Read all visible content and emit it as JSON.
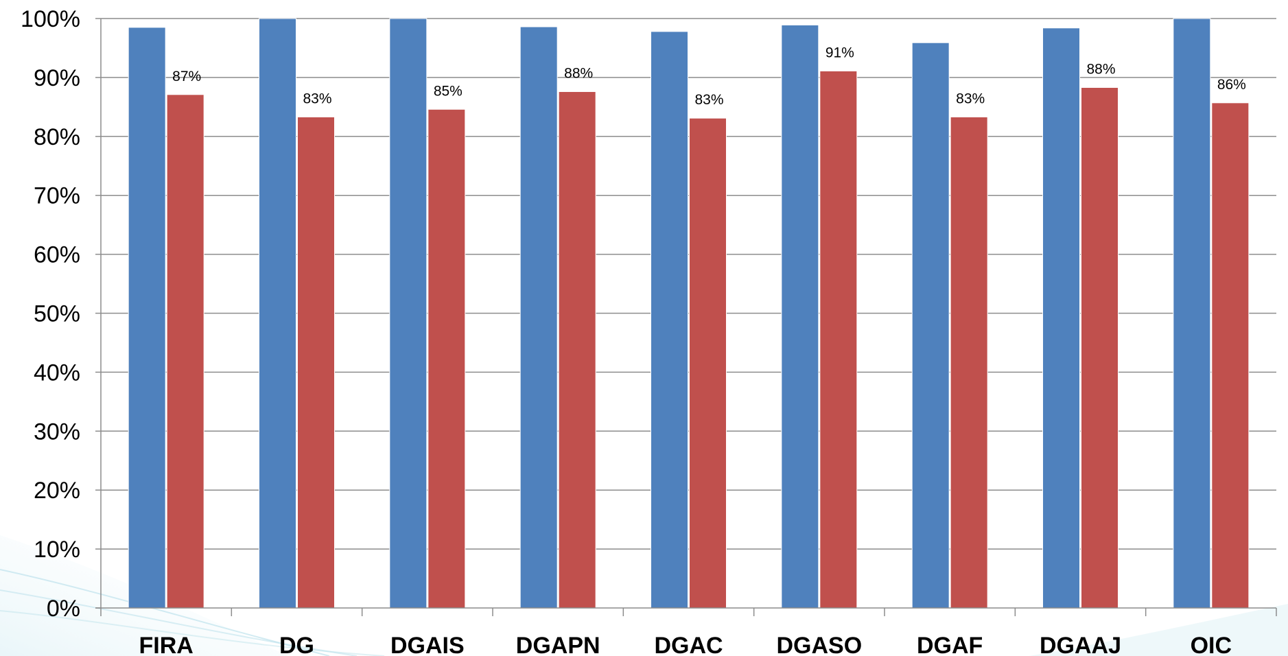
{
  "chart_data": {
    "type": "bar",
    "title": "",
    "xlabel": "",
    "ylabel": "",
    "categories": [
      "FIRA",
      "DG",
      "DGAIS",
      "DGAPN",
      "DGAC",
      "DGASO",
      "DGAF",
      "DGAAJ",
      "OIC"
    ],
    "series": [
      {
        "color": "#4F81BD",
        "values": [
          98.5,
          100,
          100,
          98.6,
          97.8,
          98.9,
          95.9,
          98.4,
          100
        ],
        "labels": [
          "",
          "",
          "",
          "",
          "",
          "",
          "",
          "",
          ""
        ]
      },
      {
        "color": "#C0504D",
        "values": [
          87.1,
          83.3,
          84.6,
          87.6,
          83.1,
          91.1,
          83.3,
          88.3,
          85.7
        ],
        "labels": [
          "87%",
          "83%",
          "85%",
          "88%",
          "83%",
          "91%",
          "83%",
          "88%",
          "86%"
        ]
      }
    ],
    "ylim": [
      0,
      100
    ],
    "yticks": [
      "0%",
      "10%",
      "20%",
      "30%",
      "40%",
      "50%",
      "60%",
      "70%",
      "80%",
      "90%",
      "100%"
    ],
    "grid": true,
    "legend": "none"
  }
}
